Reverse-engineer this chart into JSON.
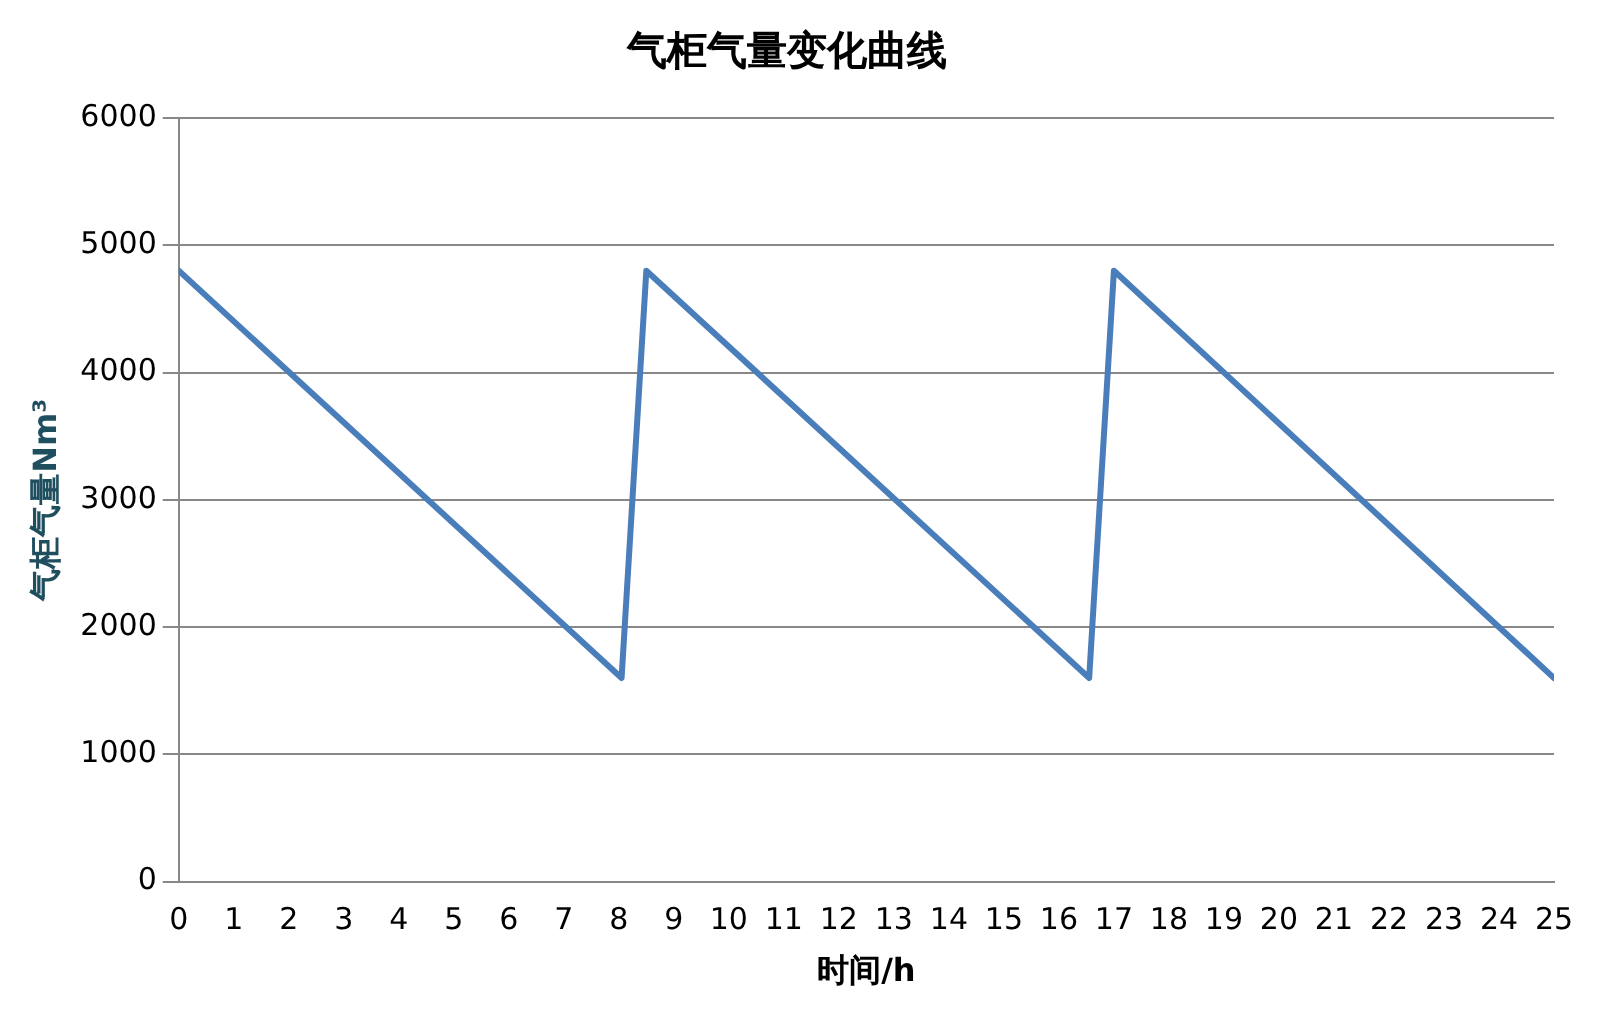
{
  "chart_data": {
    "type": "line",
    "title": "气柜气量变化曲线",
    "xlabel": "时间/h",
    "ylabel": "气柜气量Nm³",
    "x": [
      0,
      8.05,
      8.5,
      16.55,
      17,
      25
    ],
    "series": [
      {
        "color": "#4a7ebb",
        "values": [
          4800,
          1600,
          4800,
          1600,
          4800,
          1600
        ]
      }
    ],
    "xlim": [
      0,
      25
    ],
    "xticks": [
      0,
      1,
      2,
      3,
      4,
      5,
      6,
      7,
      8,
      9,
      10,
      11,
      12,
      13,
      14,
      15,
      16,
      17,
      18,
      19,
      20,
      21,
      22,
      23,
      24,
      25
    ],
    "ylim": [
      0,
      6000
    ],
    "yticks": [
      0,
      1000,
      2000,
      3000,
      4000,
      5000,
      6000
    ],
    "grid": "y",
    "legend": false,
    "marker": "none",
    "line_style": "solid"
  }
}
